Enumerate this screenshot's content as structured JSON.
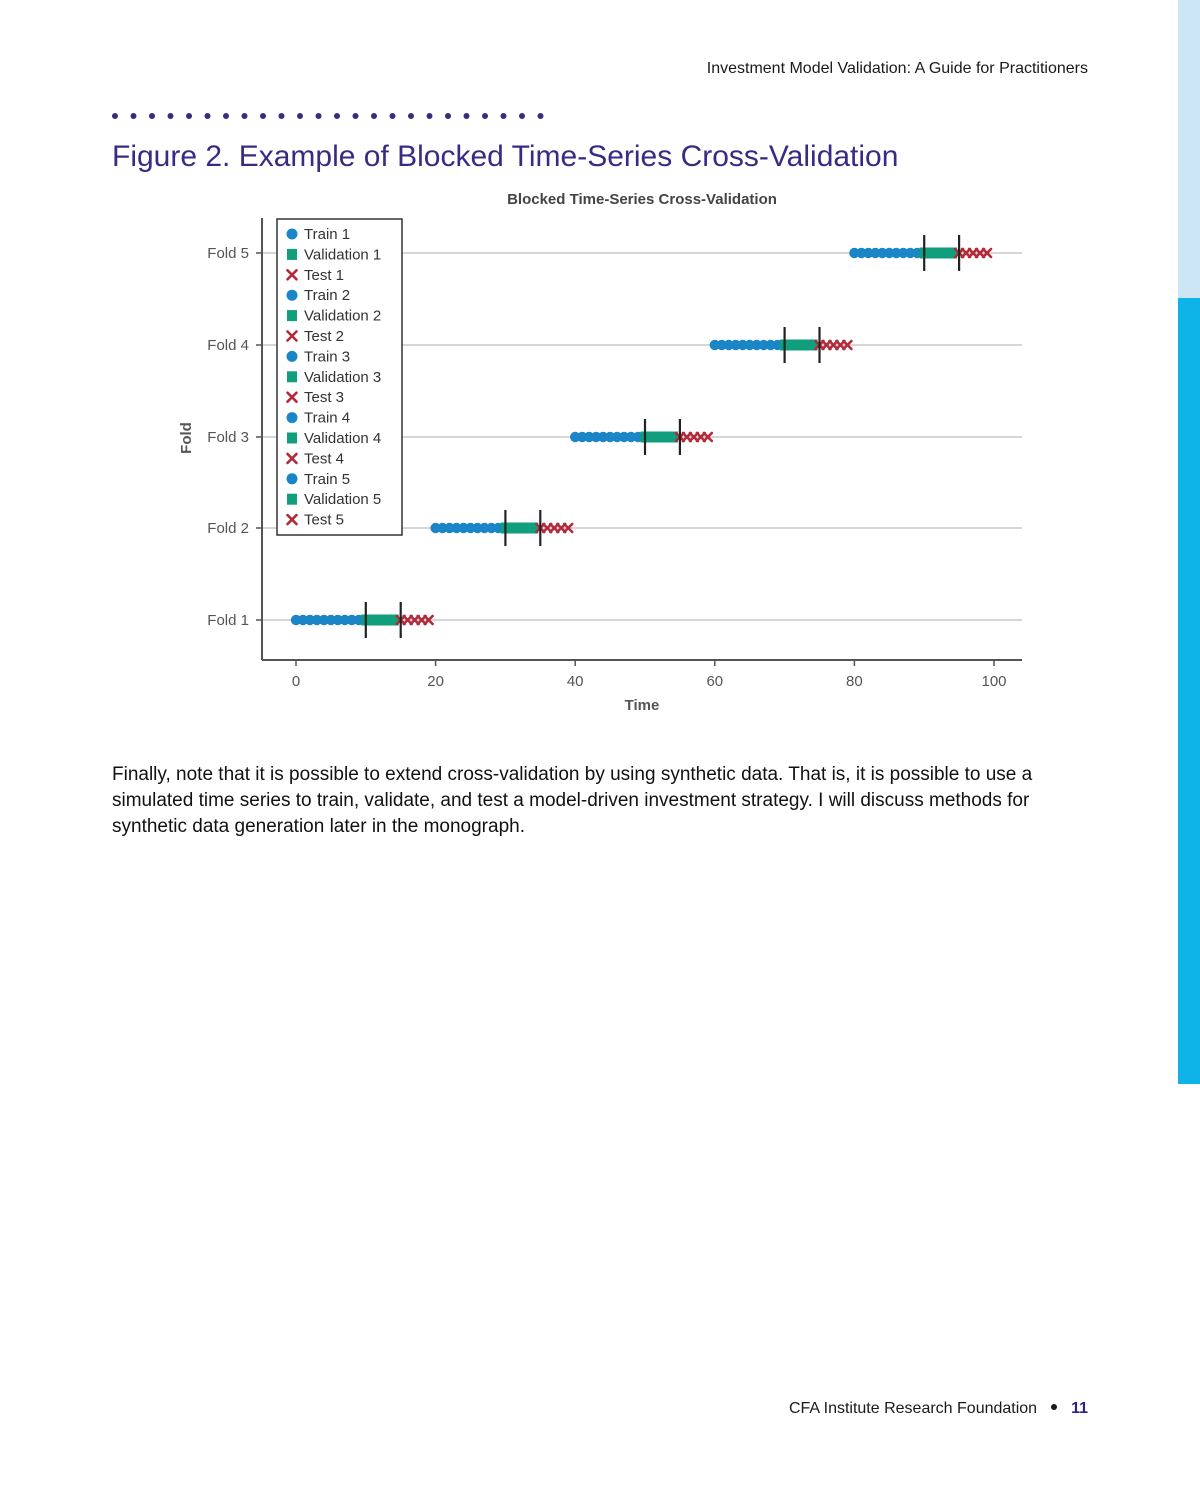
{
  "header": {
    "running_title": "Investment Model Validation: A Guide for Practitioners"
  },
  "figure": {
    "caption": "Figure 2. Example of Blocked Time-Series Cross-Validation"
  },
  "colors": {
    "train": "#1a86c7",
    "validation": "#119e7c",
    "test": "#b32a3a",
    "accent_purple": "#3a2a84",
    "edge_blue": "#0eb4e7"
  },
  "chart_data": {
    "type": "scatter",
    "title": "Blocked Time-Series Cross-Validation",
    "xlabel": "Time",
    "ylabel": "Fold",
    "xlim": [
      -5,
      104
    ],
    "x_ticks": [
      0,
      20,
      40,
      60,
      80,
      100
    ],
    "y_categories": [
      "Fold 1",
      "Fold 2",
      "Fold 3",
      "Fold 4",
      "Fold 5"
    ],
    "grid": "horizontal",
    "legend_position": "top-left",
    "series": [
      {
        "name": "Train 1",
        "kind": "train",
        "fold": 1,
        "x": [
          0,
          1,
          2,
          3,
          4,
          5,
          6,
          7,
          8,
          9
        ]
      },
      {
        "name": "Validation 1",
        "kind": "validation",
        "fold": 1,
        "x": [
          10,
          11,
          12,
          13,
          14
        ]
      },
      {
        "name": "Test 1",
        "kind": "test",
        "fold": 1,
        "x": [
          15,
          16,
          17,
          18,
          19
        ]
      },
      {
        "name": "Train 2",
        "kind": "train",
        "fold": 2,
        "x": [
          20,
          21,
          22,
          23,
          24,
          25,
          26,
          27,
          28,
          29
        ]
      },
      {
        "name": "Validation 2",
        "kind": "validation",
        "fold": 2,
        "x": [
          30,
          31,
          32,
          33,
          34
        ]
      },
      {
        "name": "Test 2",
        "kind": "test",
        "fold": 2,
        "x": [
          35,
          36,
          37,
          38,
          39
        ]
      },
      {
        "name": "Train 3",
        "kind": "train",
        "fold": 3,
        "x": [
          40,
          41,
          42,
          43,
          44,
          45,
          46,
          47,
          48,
          49
        ]
      },
      {
        "name": "Validation 3",
        "kind": "validation",
        "fold": 3,
        "x": [
          50,
          51,
          52,
          53,
          54
        ]
      },
      {
        "name": "Test 3",
        "kind": "test",
        "fold": 3,
        "x": [
          55,
          56,
          57,
          58,
          59
        ]
      },
      {
        "name": "Train 4",
        "kind": "train",
        "fold": 4,
        "x": [
          60,
          61,
          62,
          63,
          64,
          65,
          66,
          67,
          68,
          69
        ]
      },
      {
        "name": "Validation 4",
        "kind": "validation",
        "fold": 4,
        "x": [
          70,
          71,
          72,
          73,
          74
        ]
      },
      {
        "name": "Test 4",
        "kind": "test",
        "fold": 4,
        "x": [
          75,
          76,
          77,
          78,
          79
        ]
      },
      {
        "name": "Train 5",
        "kind": "train",
        "fold": 5,
        "x": [
          80,
          81,
          82,
          83,
          84,
          85,
          86,
          87,
          88,
          89
        ]
      },
      {
        "name": "Validation 5",
        "kind": "validation",
        "fold": 5,
        "x": [
          90,
          91,
          92,
          93,
          94
        ]
      },
      {
        "name": "Test 5",
        "kind": "test",
        "fold": 5,
        "x": [
          95,
          96,
          97,
          98,
          99
        ]
      }
    ],
    "boundaries": [
      {
        "fold": 1,
        "x": [
          10,
          15
        ]
      },
      {
        "fold": 2,
        "x": [
          30,
          35
        ]
      },
      {
        "fold": 3,
        "x": [
          50,
          55
        ]
      },
      {
        "fold": 4,
        "x": [
          70,
          75
        ]
      },
      {
        "fold": 5,
        "x": [
          90,
          95
        ]
      }
    ]
  },
  "body": {
    "paragraph": "Finally, note that it is possible to extend cross-validation by using synthetic data. That is, it is possible to use a simulated time series to train, validate, and test a model-driven investment strategy. I will discuss methods for synthetic data generation later in the monograph."
  },
  "footer": {
    "publisher": "CFA Institute Research Foundation",
    "page_number": "11"
  }
}
